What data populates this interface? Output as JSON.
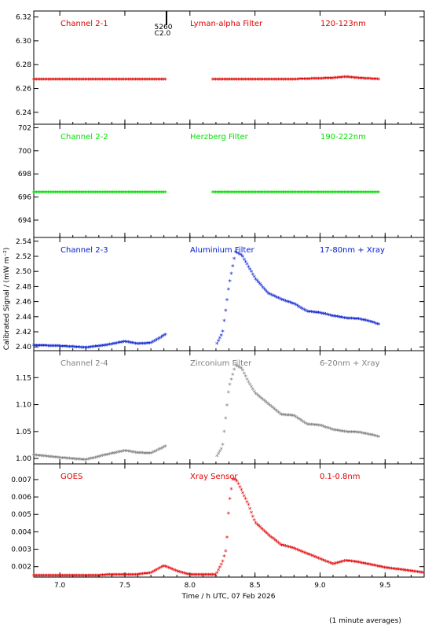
{
  "figure": {
    "x_axis_label": "Time / h UTC, 07 Feb 2026",
    "y_axis_label": "Calibrated Signal / (mW m⁻²)",
    "footer_note": "(1 minute averages)",
    "x_ticks": [
      "7.0",
      "7.5",
      "8.0",
      "8.5",
      "9.0",
      "9.5"
    ],
    "x_range": [
      6.8,
      9.8
    ],
    "marker": {
      "x_value": 7.82,
      "label_top": "5260",
      "label_bottom": "C2.0"
    }
  },
  "chart_data": [
    {
      "type": "scatter",
      "channel": "Channel 2-1",
      "filter": "Lyman-alpha Filter",
      "band": "120-123nm",
      "color": "#e00000",
      "ylim": [
        6.23,
        6.325
      ],
      "y_ticks": [
        "6.24",
        "6.26",
        "6.28",
        "6.30",
        "6.32"
      ],
      "gap": [
        7.82,
        8.17
      ],
      "x_end": 9.46,
      "points": [
        [
          6.8,
          6.267
        ],
        [
          7.0,
          6.267
        ],
        [
          7.3,
          6.267
        ],
        [
          7.6,
          6.267
        ],
        [
          7.8,
          6.267
        ],
        [
          8.2,
          6.267
        ],
        [
          8.5,
          6.267
        ],
        [
          8.8,
          6.267
        ],
        [
          9.1,
          6.268
        ],
        [
          9.2,
          6.269
        ],
        [
          9.3,
          6.268
        ],
        [
          9.46,
          6.267
        ]
      ]
    },
    {
      "type": "scatter",
      "channel": "Channel 2-2",
      "filter": "Herzberg Filter",
      "band": "190-222nm",
      "color": "#00e000",
      "ylim": [
        692.5,
        702.3
      ],
      "y_ticks": [
        "694",
        "696",
        "698",
        "700",
        "702"
      ],
      "gap": [
        7.82,
        8.17
      ],
      "x_end": 9.46,
      "points": [
        [
          6.8,
          696.35
        ],
        [
          7.2,
          696.35
        ],
        [
          7.8,
          696.35
        ],
        [
          8.2,
          696.35
        ],
        [
          8.8,
          696.35
        ],
        [
          9.46,
          696.35
        ]
      ]
    },
    {
      "type": "scatter",
      "channel": "Channel 2-3",
      "filter": "Aluminium Filter",
      "band": "17-80nm + Xray",
      "color": "#0018d0",
      "ylim": [
        2.395,
        2.545
      ],
      "y_ticks": [
        "2.40",
        "2.42",
        "2.44",
        "2.46",
        "2.48",
        "2.50",
        "2.52",
        "2.54"
      ],
      "gap": [
        7.82,
        8.2
      ],
      "x_end": 9.46,
      "points": [
        [
          6.8,
          2.401
        ],
        [
          7.0,
          2.4
        ],
        [
          7.2,
          2.398
        ],
        [
          7.35,
          2.401
        ],
        [
          7.5,
          2.406
        ],
        [
          7.6,
          2.403
        ],
        [
          7.7,
          2.404
        ],
        [
          7.82,
          2.416
        ],
        [
          8.2,
          2.401
        ],
        [
          8.25,
          2.417
        ],
        [
          8.3,
          2.48
        ],
        [
          8.35,
          2.525
        ],
        [
          8.4,
          2.52
        ],
        [
          8.45,
          2.505
        ],
        [
          8.5,
          2.49
        ],
        [
          8.6,
          2.47
        ],
        [
          8.7,
          2.462
        ],
        [
          8.8,
          2.456
        ],
        [
          8.9,
          2.446
        ],
        [
          9.0,
          2.444
        ],
        [
          9.1,
          2.44
        ],
        [
          9.2,
          2.437
        ],
        [
          9.3,
          2.436
        ],
        [
          9.4,
          2.432
        ],
        [
          9.46,
          2.428
        ]
      ]
    },
    {
      "type": "scatter",
      "channel": "Channel 2-4",
      "filter": "Zirconium Filter",
      "band": "6-20nm + Xray",
      "color": "#808080",
      "ylim": [
        0.99,
        1.2
      ],
      "y_ticks": [
        "1.00",
        "1.05",
        "1.10",
        "1.15"
      ],
      "gap": [
        7.82,
        8.2
      ],
      "x_end": 9.46,
      "points": [
        [
          6.8,
          1.005
        ],
        [
          7.0,
          1.0
        ],
        [
          7.2,
          0.996
        ],
        [
          7.35,
          1.005
        ],
        [
          7.5,
          1.013
        ],
        [
          7.6,
          1.009
        ],
        [
          7.7,
          1.008
        ],
        [
          7.82,
          1.022
        ],
        [
          8.2,
          1.0
        ],
        [
          8.25,
          1.02
        ],
        [
          8.3,
          1.13
        ],
        [
          8.35,
          1.172
        ],
        [
          8.4,
          1.165
        ],
        [
          8.45,
          1.14
        ],
        [
          8.5,
          1.12
        ],
        [
          8.6,
          1.1
        ],
        [
          8.7,
          1.08
        ],
        [
          8.8,
          1.078
        ],
        [
          8.9,
          1.062
        ],
        [
          9.0,
          1.06
        ],
        [
          9.1,
          1.052
        ],
        [
          9.2,
          1.048
        ],
        [
          9.3,
          1.047
        ],
        [
          9.4,
          1.042
        ],
        [
          9.46,
          1.038
        ]
      ]
    },
    {
      "type": "scatter",
      "channel": "GOES",
      "filter": "Xray Sensor",
      "band": "0.1-0.8nm",
      "color": "#e00000",
      "ylim": [
        0.0014,
        0.0079
      ],
      "y_ticks": [
        "0.002",
        "0.003",
        "0.004",
        "0.005",
        "0.006",
        "0.007"
      ],
      "gap": null,
      "x_end": 9.8,
      "points": [
        [
          6.8,
          0.0014
        ],
        [
          7.0,
          0.0014
        ],
        [
          7.2,
          0.0014
        ],
        [
          7.4,
          0.0015
        ],
        [
          7.6,
          0.0015
        ],
        [
          7.7,
          0.0016
        ],
        [
          7.8,
          0.002
        ],
        [
          7.9,
          0.0017
        ],
        [
          8.0,
          0.0015
        ],
        [
          8.2,
          0.0015
        ],
        [
          8.25,
          0.0022
        ],
        [
          8.28,
          0.003
        ],
        [
          8.3,
          0.0055
        ],
        [
          8.33,
          0.007
        ],
        [
          8.36,
          0.0069
        ],
        [
          8.45,
          0.0055
        ],
        [
          8.5,
          0.0045
        ],
        [
          8.6,
          0.0038
        ],
        [
          8.7,
          0.0032
        ],
        [
          8.8,
          0.003
        ],
        [
          8.9,
          0.0027
        ],
        [
          9.0,
          0.0024
        ],
        [
          9.1,
          0.0021
        ],
        [
          9.2,
          0.0023
        ],
        [
          9.3,
          0.0022
        ],
        [
          9.5,
          0.0019
        ],
        [
          9.7,
          0.0017
        ],
        [
          9.8,
          0.0016
        ]
      ]
    }
  ]
}
